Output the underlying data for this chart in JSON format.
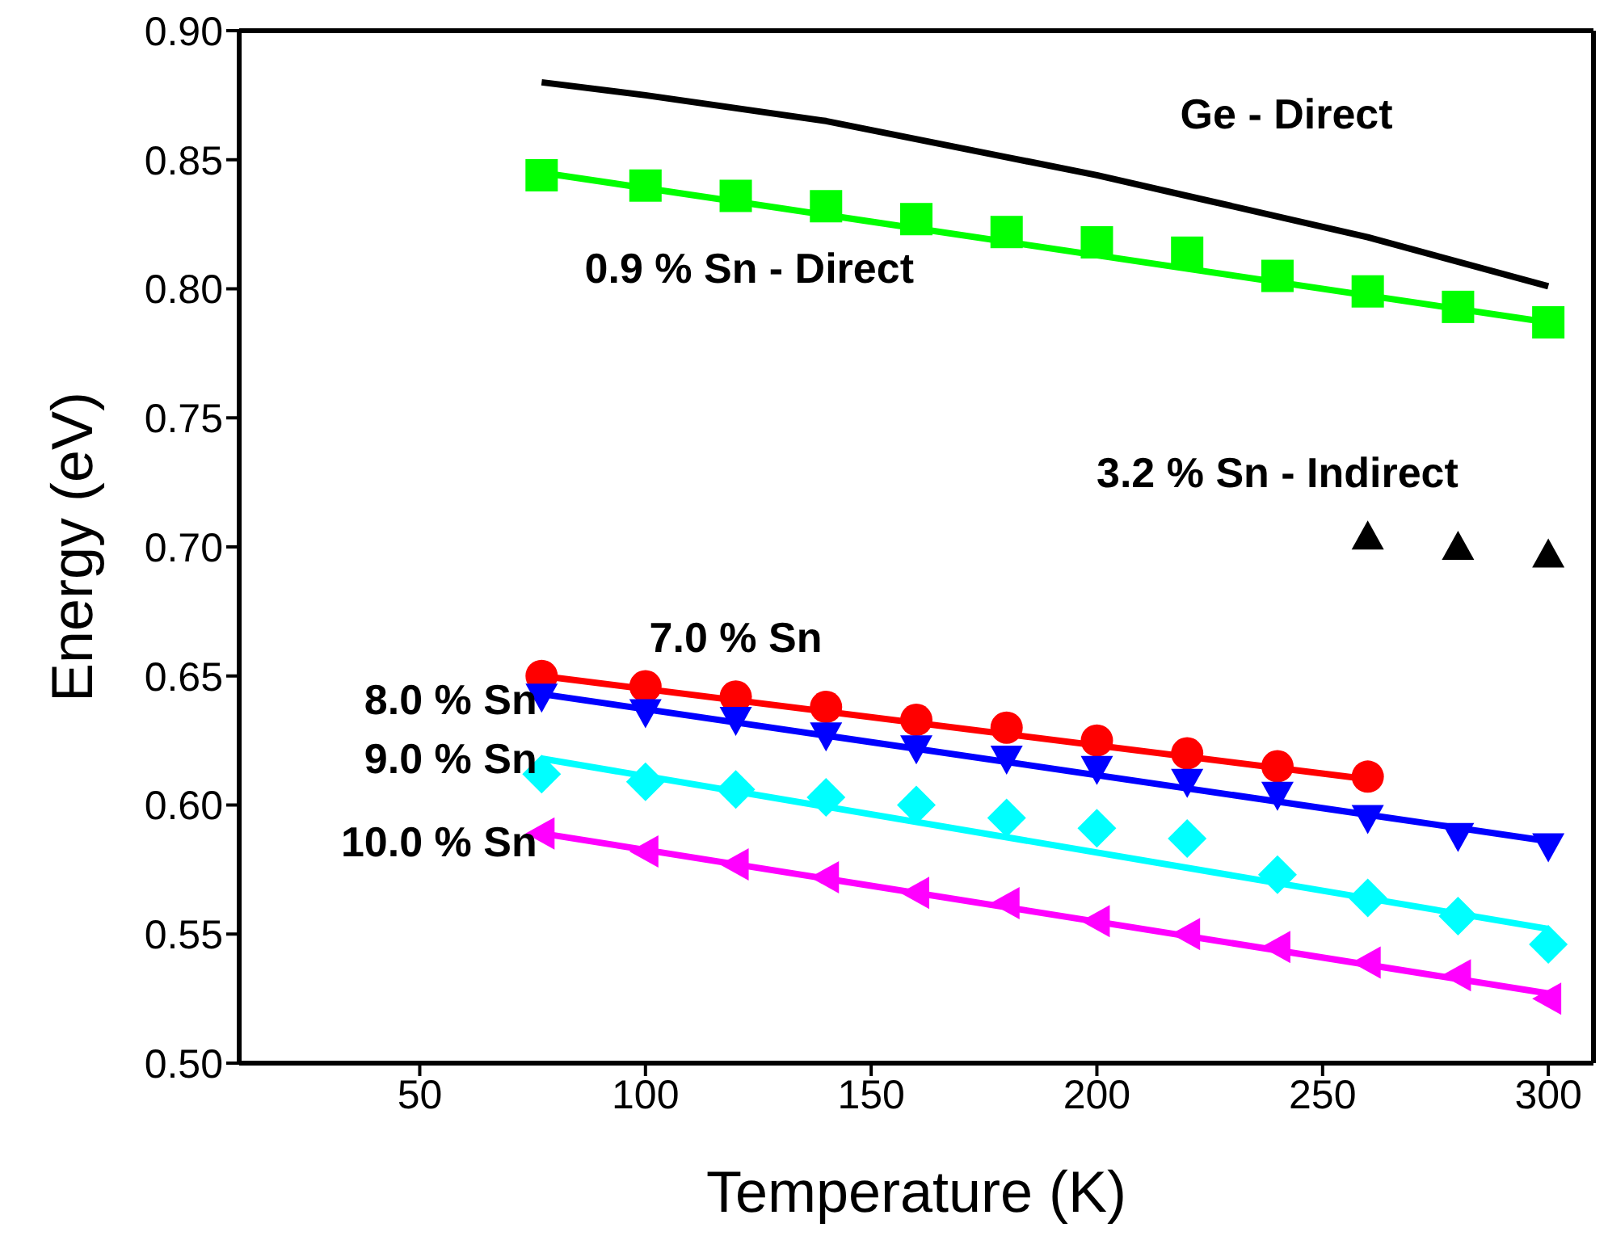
{
  "chart_data": {
    "type": "scatter",
    "xlabel": "Temperature (K)",
    "ylabel": "Energy (eV)",
    "xlim": [
      10,
      310
    ],
    "xticks": [
      50,
      100,
      150,
      200,
      250,
      300
    ],
    "ylim": [
      0.5,
      0.9
    ],
    "yticks": [
      {
        "value": 0.5,
        "label": "0.50"
      },
      0.55,
      {
        "value": 0.6,
        "label": "0.60"
      },
      0.65,
      {
        "value": 0.7,
        "label": "0.70"
      },
      0.75,
      {
        "value": 0.8,
        "label": "0.80"
      },
      0.85,
      {
        "value": 0.9,
        "label": "0.90"
      }
    ],
    "series": [
      {
        "name": "Ge - Direct",
        "type": "line",
        "marker": "none",
        "color": "#000000",
        "x": [
          77,
          100,
          140,
          180,
          200,
          220,
          260,
          300
        ],
        "values": [
          0.88,
          0.875,
          0.865,
          0.851,
          0.844,
          0.836,
          0.82,
          0.801
        ]
      },
      {
        "name": "0.9 % Sn - Direct",
        "marker": "square",
        "color": "#00ff00",
        "x": [
          77,
          100,
          120,
          140,
          160,
          180,
          200,
          220,
          240,
          260,
          280,
          300
        ],
        "values": [
          0.844,
          0.84,
          0.836,
          0.832,
          0.827,
          0.822,
          0.818,
          0.814,
          0.805,
          0.799,
          0.793,
          0.787
        ]
      },
      {
        "type": "line",
        "marker": "none",
        "color": "#00ff00",
        "x": [
          77,
          300
        ],
        "values": [
          0.845,
          0.787
        ]
      },
      {
        "name": "3.2 % Sn - Indirect",
        "marker": "triangle",
        "color": "#000000",
        "x": [
          260,
          280,
          300
        ],
        "values": [
          0.704,
          0.7,
          0.697
        ]
      },
      {
        "name": "7.0 % Sn",
        "marker": "circle",
        "color": "#ff0000",
        "x": [
          77,
          100,
          120,
          140,
          160,
          180,
          200,
          220,
          240,
          260
        ],
        "values": [
          0.65,
          0.646,
          0.642,
          0.638,
          0.633,
          0.63,
          0.625,
          0.62,
          0.615,
          0.611
        ]
      },
      {
        "type": "line",
        "marker": "none",
        "color": "#ff0000",
        "x": [
          77,
          260
        ],
        "values": [
          0.65,
          0.61
        ]
      },
      {
        "name": "8.0 % Sn",
        "marker": "triangle-down",
        "color": "#0000ff",
        "x": [
          77,
          100,
          120,
          140,
          160,
          180,
          200,
          220,
          240,
          260,
          280,
          300
        ],
        "values": [
          0.642,
          0.636,
          0.633,
          0.627,
          0.622,
          0.618,
          0.614,
          0.609,
          0.604,
          0.595,
          0.588,
          0.584
        ]
      },
      {
        "type": "line",
        "marker": "none",
        "color": "#0000ff",
        "x": [
          77,
          300
        ],
        "values": [
          0.643,
          0.586
        ]
      },
      {
        "name": "9.0 % Sn",
        "marker": "diamond",
        "color": "#00ffff",
        "x": [
          77,
          100,
          120,
          140,
          160,
          180,
          200,
          220,
          240,
          260,
          280,
          300
        ],
        "values": [
          0.612,
          0.609,
          0.606,
          0.603,
          0.6,
          0.595,
          0.591,
          0.587,
          0.573,
          0.564,
          0.557,
          0.546
        ]
      },
      {
        "type": "line",
        "marker": "none",
        "color": "#00ffff",
        "x": [
          77,
          300
        ],
        "values": [
          0.618,
          0.552
        ]
      },
      {
        "name": "10.0 % Sn",
        "marker": "triangle-left",
        "color": "#ff00ff",
        "x": [
          77,
          100,
          120,
          140,
          160,
          180,
          200,
          220,
          240,
          260,
          280,
          300
        ],
        "values": [
          0.589,
          0.582,
          0.577,
          0.572,
          0.566,
          0.562,
          0.555,
          0.55,
          0.545,
          0.539,
          0.534,
          0.525
        ]
      },
      {
        "type": "line",
        "marker": "none",
        "color": "#ff00ff",
        "x": [
          77,
          300
        ],
        "values": [
          0.589,
          0.527
        ]
      }
    ]
  }
}
